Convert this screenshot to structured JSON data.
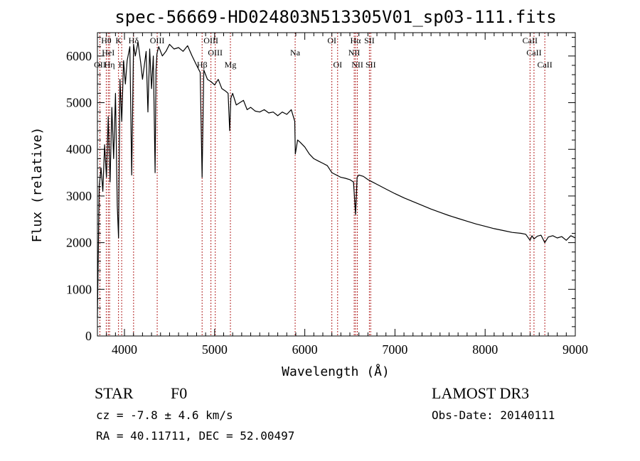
{
  "chart_data": {
    "type": "line",
    "title": "spec-56669-HD024803N513305V01_sp03-111.fits",
    "xlabel": "Wavelength (Å)",
    "ylabel": "Flux (relative)",
    "xlim": [
      3700,
      9000
    ],
    "ylim": [
      0,
      6500
    ],
    "xticks": [
      4000,
      5000,
      6000,
      7000,
      8000,
      9000
    ],
    "yticks": [
      0,
      1000,
      2000,
      3000,
      4000,
      5000,
      6000
    ],
    "spectrum": {
      "name": "flux",
      "x": [
        3700,
        3720,
        3740,
        3760,
        3780,
        3800,
        3820,
        3840,
        3860,
        3880,
        3900,
        3920,
        3934,
        3950,
        3970,
        3990,
        4010,
        4030,
        4060,
        4080,
        4101,
        4120,
        4150,
        4180,
        4200,
        4240,
        4260,
        4280,
        4300,
        4320,
        4340,
        4350,
        4360,
        4380,
        4420,
        4460,
        4500,
        4550,
        4600,
        4650,
        4700,
        4750,
        4800,
        4840,
        4861,
        4880,
        4920,
        4960,
        5000,
        5040,
        5080,
        5120,
        5150,
        5167,
        5180,
        5200,
        5240,
        5280,
        5320,
        5360,
        5400,
        5450,
        5500,
        5550,
        5600,
        5650,
        5700,
        5750,
        5800,
        5850,
        5889,
        5895,
        5920,
        5950,
        6000,
        6050,
        6100,
        6150,
        6200,
        6250,
        6300,
        6350,
        6400,
        6450,
        6500,
        6540,
        6563,
        6580,
        6600,
        6650,
        6700,
        6750,
        6800,
        6900,
        7000,
        7100,
        7200,
        7300,
        7400,
        7500,
        7600,
        7700,
        7800,
        7900,
        8000,
        8100,
        8200,
        8300,
        8400,
        8450,
        8498,
        8520,
        8542,
        8580,
        8620,
        8662,
        8700,
        8750,
        8800,
        8850,
        8900,
        8950,
        8980,
        9000
      ],
      "y": [
        400,
        3200,
        3600,
        3100,
        4100,
        3400,
        4700,
        3300,
        4900,
        3800,
        5200,
        2800,
        2100,
        5500,
        4600,
        5900,
        5400,
        5900,
        6200,
        3450,
        6250,
        6000,
        6300,
        5850,
        5500,
        6100,
        4800,
        6150,
        5300,
        6000,
        3500,
        5700,
        6050,
        6200,
        6000,
        6100,
        6250,
        6150,
        6180,
        6100,
        6220,
        6000,
        5800,
        5650,
        3400,
        5700,
        5500,
        5450,
        5380,
        5500,
        5300,
        5250,
        5200,
        4400,
        5100,
        5200,
        4950,
        5000,
        5050,
        4850,
        4900,
        4820,
        4800,
        4850,
        4780,
        4800,
        4720,
        4800,
        4750,
        4850,
        4600,
        3900,
        4200,
        4150,
        4050,
        3900,
        3800,
        3750,
        3700,
        3650,
        3500,
        3450,
        3400,
        3380,
        3350,
        3300,
        2600,
        3400,
        3450,
        3420,
        3350,
        3300,
        3250,
        3150,
        3050,
        2960,
        2880,
        2800,
        2720,
        2650,
        2580,
        2520,
        2460,
        2400,
        2350,
        2300,
        2260,
        2220,
        2200,
        2180,
        2050,
        2150,
        2080,
        2140,
        2160,
        2000,
        2120,
        2150,
        2100,
        2130,
        2050,
        2150,
        2120,
        2100
      ]
    },
    "lines": [
      {
        "label": "Hθ",
        "wavelength": 3798,
        "row": 0
      },
      {
        "label": "OII",
        "wavelength": 3727,
        "row": 2
      },
      {
        "label": "HeI",
        "wavelength": 3820,
        "row": 1
      },
      {
        "label": "Hη",
        "wavelength": 3835,
        "row": 2
      },
      {
        "label": "K",
        "wavelength": 3934,
        "row": 0
      },
      {
        "label": "H",
        "wavelength": 3969,
        "row": 2
      },
      {
        "label": "Hδ",
        "wavelength": 4101,
        "row": 0
      },
      {
        "label": "OIII",
        "wavelength": 4363,
        "row": 0
      },
      {
        "label": "Hβ",
        "wavelength": 4861,
        "row": 2
      },
      {
        "label": "OIII",
        "wavelength": 4959,
        "row": 0
      },
      {
        "label": "OIII",
        "wavelength": 5007,
        "row": 1
      },
      {
        "label": "Mg",
        "wavelength": 5175,
        "row": 2
      },
      {
        "label": "Na",
        "wavelength": 5893,
        "row": 1
      },
      {
        "label": "OI",
        "wavelength": 6300,
        "row": 0
      },
      {
        "label": "OI",
        "wavelength": 6364,
        "row": 2
      },
      {
        "label": "Hα",
        "wavelength": 6563,
        "row": 0
      },
      {
        "label": "NII",
        "wavelength": 6548,
        "row": 1
      },
      {
        "label": "NII",
        "wavelength": 6583,
        "row": 2
      },
      {
        "label": "SII",
        "wavelength": 6716,
        "row": 0
      },
      {
        "label": "SII",
        "wavelength": 6731,
        "row": 2
      },
      {
        "label": "CaII",
        "wavelength": 8498,
        "row": 0
      },
      {
        "label": "CaII",
        "wavelength": 8542,
        "row": 1
      },
      {
        "label": "CaII",
        "wavelength": 8662,
        "row": 2
      }
    ]
  },
  "info": {
    "object_class": "STAR",
    "subclass": "F0",
    "survey": "LAMOST DR3",
    "redshift": "cz = -7.8 ± 4.6 km/s",
    "obs_date": "Obs-Date: 20140111",
    "coords": "RA =  40.11711, DEC =  52.00497"
  },
  "colors": {
    "spectrum": "#000000",
    "line_marker": "#b22222",
    "axis": "#000000"
  }
}
